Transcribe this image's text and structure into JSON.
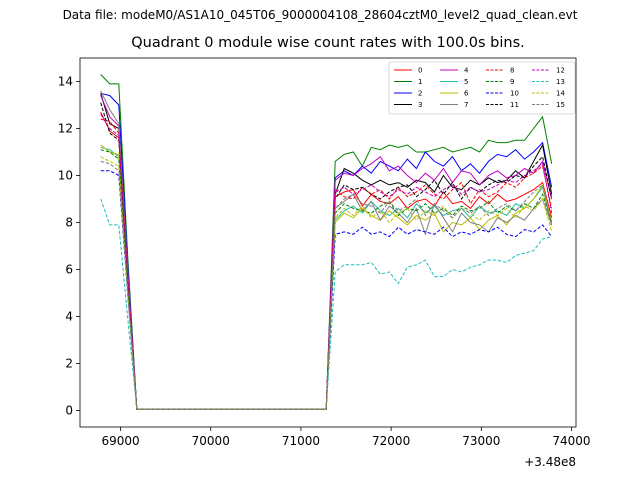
{
  "chart_data": {
    "type": "line",
    "supertitle": "Data file: modeM0/AS1A10_045T06_9000004108_28604cztM0_level2_quad_clean.evt",
    "title": "Quadrant 0 module wise count rates with 100.0s bins.",
    "xlabel": "",
    "ylabel": "",
    "x_offset_label": "+3.48e8",
    "xlim": [
      68550,
      74050
    ],
    "ylim": [
      -0.7,
      15.0
    ],
    "xticks": [
      69000,
      70000,
      71000,
      72000,
      73000,
      74000
    ],
    "yticks": [
      0,
      2,
      4,
      6,
      8,
      10,
      12,
      14
    ],
    "grid": false,
    "legend": {
      "position": "top-right",
      "columns": 4
    },
    "x": [
      68780,
      68880,
      68980,
      69080,
      69180,
      71280,
      71380,
      71480,
      71580,
      71680,
      71780,
      71880,
      71980,
      72080,
      72180,
      72280,
      72380,
      72480,
      72580,
      72680,
      72780,
      72880,
      72980,
      73080,
      73180,
      73280,
      73380,
      73480,
      73580,
      73680,
      73780
    ],
    "series": [
      {
        "name": "0",
        "color": "#ff0000",
        "dashed": false,
        "values": [
          12.7,
          11.9,
          11.6,
          5.5,
          0.05,
          0.05,
          9.1,
          9.3,
          9.4,
          8.7,
          9.2,
          8.9,
          8.8,
          9.1,
          8.6,
          8.9,
          9.0,
          8.7,
          9.3,
          8.8,
          8.9,
          8.6,
          9.1,
          8.8,
          9.2,
          8.9,
          9.0,
          9.2,
          9.4,
          9.7,
          8.2
        ]
      },
      {
        "name": "1",
        "color": "#008000",
        "dashed": false,
        "values": [
          14.3,
          13.9,
          13.9,
          6.5,
          0.05,
          0.05,
          10.6,
          10.9,
          11.0,
          10.4,
          11.2,
          11.1,
          11.3,
          11.2,
          11.3,
          11.0,
          11.0,
          11.1,
          11.2,
          11.0,
          11.1,
          11.2,
          11.0,
          11.5,
          11.4,
          11.4,
          11.5,
          11.5,
          12.0,
          12.5,
          10.5
        ]
      },
      {
        "name": "2",
        "color": "#0000ff",
        "dashed": false,
        "values": [
          13.5,
          13.4,
          13.0,
          6.2,
          0.05,
          0.05,
          9.9,
          10.2,
          10.0,
          10.4,
          10.1,
          10.6,
          10.4,
          10.2,
          10.7,
          10.3,
          11.0,
          10.6,
          10.4,
          10.8,
          10.2,
          10.5,
          10.1,
          10.6,
          10.9,
          10.8,
          11.1,
          10.7,
          11.0,
          11.4,
          9.5
        ]
      },
      {
        "name": "3",
        "color": "#000000",
        "dashed": false,
        "values": [
          13.5,
          12.2,
          12.0,
          5.8,
          0.05,
          0.05,
          9.2,
          10.3,
          10.1,
          9.8,
          9.6,
          9.8,
          9.6,
          9.7,
          9.5,
          9.8,
          9.7,
          9.3,
          10.0,
          9.5,
          9.4,
          9.8,
          9.6,
          9.9,
          9.7,
          9.8,
          10.2,
          9.9,
          10.6,
          11.3,
          9.2
        ]
      },
      {
        "name": "4",
        "color": "#bf00bf",
        "dashed": false,
        "values": [
          13.4,
          12.5,
          12.1,
          5.9,
          0.05,
          0.05,
          9.8,
          10.1,
          10.0,
          10.3,
          10.5,
          10.8,
          10.2,
          10.4,
          10.0,
          9.7,
          10.1,
          9.8,
          10.3,
          9.7,
          10.2,
          10.1,
          9.6,
          10.0,
          10.2,
          9.9,
          10.0,
          10.3,
          10.1,
          10.6,
          9.0
        ]
      },
      {
        "name": "5",
        "color": "#1fbfa5",
        "dashed": false,
        "values": [
          11.2,
          11.1,
          10.8,
          5.3,
          0.05,
          0.05,
          8.1,
          8.5,
          8.7,
          8.4,
          8.9,
          8.5,
          8.3,
          8.6,
          8.2,
          8.8,
          8.4,
          8.7,
          8.3,
          8.5,
          8.6,
          8.2,
          8.7,
          8.4,
          8.5,
          8.3,
          8.8,
          8.6,
          9.0,
          9.5,
          7.9
        ]
      },
      {
        "name": "6",
        "color": "#bfbf00",
        "dashed": false,
        "values": [
          11.3,
          11.0,
          10.9,
          5.2,
          0.05,
          0.05,
          8.0,
          8.4,
          8.2,
          8.6,
          8.3,
          8.1,
          8.5,
          8.2,
          7.9,
          8.3,
          8.1,
          8.4,
          7.6,
          8.0,
          7.9,
          8.2,
          7.7,
          8.1,
          8.3,
          7.9,
          8.4,
          8.6,
          9.0,
          9.6,
          8.0
        ]
      },
      {
        "name": "7",
        "color": "#808080",
        "dashed": false,
        "values": [
          13.6,
          12.8,
          12.2,
          5.9,
          0.05,
          0.05,
          8.6,
          8.9,
          9.2,
          8.5,
          8.9,
          8.1,
          8.7,
          8.4,
          8.0,
          8.6,
          7.5,
          8.8,
          8.2,
          7.6,
          8.4,
          8.0,
          7.9,
          7.6,
          8.2,
          8.0,
          8.3,
          8.1,
          8.6,
          9.0,
          7.9
        ]
      },
      {
        "name": "8",
        "color": "#ff0000",
        "dashed": true,
        "values": [
          12.4,
          12.3,
          11.8,
          5.6,
          0.05,
          0.05,
          9.4,
          9.1,
          9.0,
          9.5,
          9.2,
          9.4,
          9.0,
          9.5,
          9.1,
          9.3,
          9.6,
          9.2,
          9.0,
          9.4,
          9.7,
          8.8,
          9.4,
          9.1,
          9.3,
          9.7,
          9.5,
          9.9,
          10.1,
          10.4,
          8.6
        ]
      },
      {
        "name": "9",
        "color": "#008000",
        "dashed": true,
        "values": [
          11.1,
          11.0,
          10.7,
          5.2,
          0.05,
          0.05,
          8.4,
          8.8,
          8.6,
          8.5,
          8.4,
          8.7,
          8.9,
          8.3,
          8.6,
          8.5,
          8.8,
          8.4,
          8.6,
          8.3,
          8.7,
          8.5,
          8.6,
          8.9,
          8.4,
          8.7,
          8.5,
          8.8,
          8.6,
          9.2,
          8.0
        ]
      },
      {
        "name": "10",
        "color": "#0000ff",
        "dashed": true,
        "values": [
          10.2,
          10.2,
          10.0,
          4.9,
          0.05,
          0.05,
          7.5,
          7.6,
          7.5,
          7.8,
          7.5,
          7.6,
          7.4,
          7.8,
          7.5,
          7.7,
          7.6,
          7.5,
          7.8,
          7.4,
          7.6,
          7.5,
          7.7,
          7.6,
          7.8,
          7.5,
          7.4,
          7.7,
          7.6,
          7.9,
          7.4
        ]
      },
      {
        "name": "11",
        "color": "#000000",
        "dashed": true,
        "values": [
          13.1,
          11.8,
          11.5,
          5.6,
          0.05,
          0.05,
          9.0,
          9.6,
          9.4,
          9.5,
          9.2,
          9.0,
          9.3,
          9.5,
          9.6,
          9.1,
          9.4,
          9.8,
          9.2,
          9.7,
          9.0,
          9.5,
          9.3,
          9.6,
          9.8,
          9.7,
          10.0,
          9.9,
          10.4,
          10.8,
          9.0
        ]
      },
      {
        "name": "12",
        "color": "#bf00bf",
        "dashed": true,
        "values": [
          12.6,
          12.0,
          11.7,
          5.7,
          0.05,
          0.05,
          9.3,
          9.5,
          9.2,
          9.4,
          9.6,
          9.3,
          9.1,
          9.4,
          9.2,
          9.5,
          9.3,
          9.1,
          9.4,
          9.6,
          9.2,
          9.5,
          9.3,
          9.4,
          9.6,
          9.8,
          9.7,
          10.0,
          10.2,
          10.5,
          8.4
        ]
      },
      {
        "name": "13",
        "color": "#1fbfbf",
        "dashed": true,
        "values": [
          9.0,
          7.9,
          7.9,
          3.9,
          0.05,
          0.05,
          5.9,
          6.2,
          6.2,
          6.2,
          6.3,
          5.8,
          5.9,
          5.4,
          6.1,
          6.2,
          6.4,
          5.7,
          5.7,
          6.0,
          5.9,
          6.1,
          6.2,
          6.4,
          6.4,
          6.3,
          6.6,
          6.7,
          6.8,
          7.3,
          7.4
        ]
      },
      {
        "name": "14",
        "color": "#bfbf00",
        "dashed": true,
        "values": [
          10.8,
          10.6,
          10.4,
          5.0,
          0.05,
          0.05,
          8.2,
          8.6,
          8.3,
          8.7,
          8.2,
          8.5,
          8.0,
          8.4,
          8.6,
          8.1,
          8.5,
          8.3,
          8.7,
          8.2,
          8.6,
          8.4,
          8.1,
          8.5,
          8.3,
          8.6,
          8.2,
          8.7,
          8.5,
          9.0,
          7.6
        ]
      },
      {
        "name": "15",
        "color": "#808080",
        "dashed": true,
        "values": [
          10.6,
          10.5,
          10.2,
          4.9,
          0.05,
          0.05,
          8.6,
          9.0,
          9.2,
          8.8,
          8.7,
          8.4,
          8.9,
          8.5,
          8.7,
          9.0,
          8.3,
          8.8,
          8.5,
          8.2,
          8.6,
          8.4,
          8.7,
          8.3,
          8.6,
          8.8,
          8.5,
          8.9,
          9.3,
          9.6,
          7.8
        ]
      }
    ]
  }
}
